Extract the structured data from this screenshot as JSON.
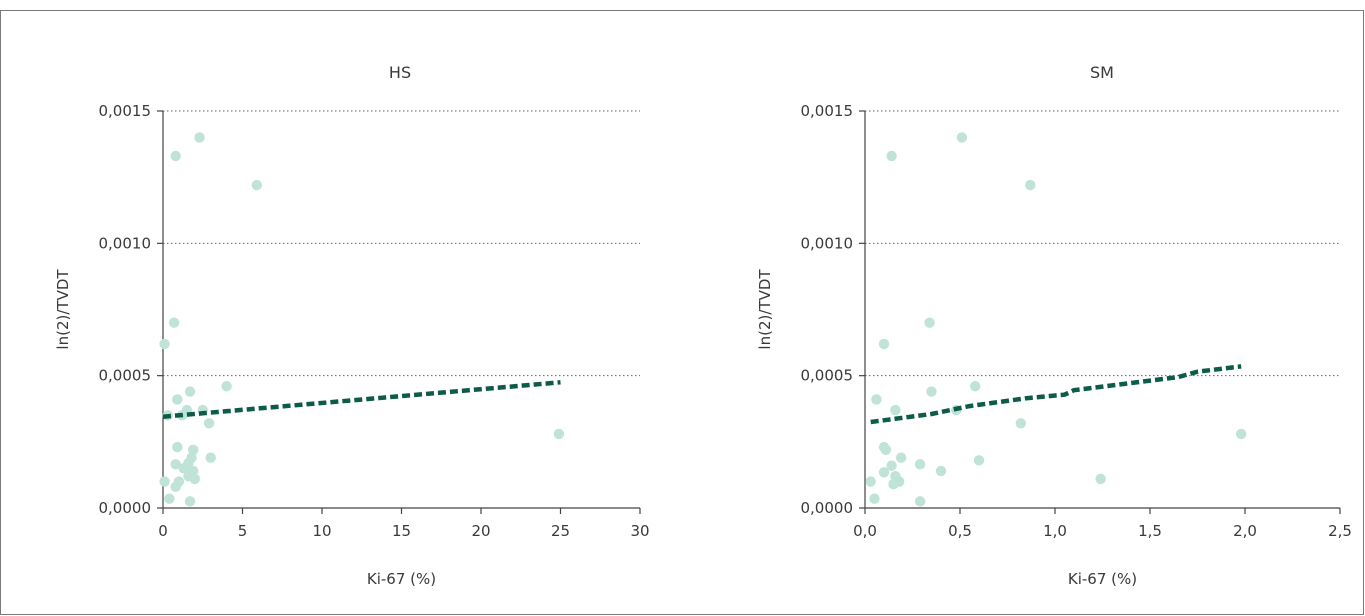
{
  "chart_data": [
    {
      "type": "scatter",
      "title": "HS",
      "xlabel": "Ki-67 (%)",
      "ylabel": "ln(2)/TVDT",
      "xlim": [
        0,
        30
      ],
      "ylim": [
        0,
        0.0015
      ],
      "xticks": [
        "0",
        "5",
        "10",
        "15",
        "20",
        "25",
        "30"
      ],
      "yticks": [
        "0,0000",
        "0,0005",
        "0,0010",
        "0,0015"
      ],
      "grid": "horizontal dotted",
      "point_color": "#bfe3d6",
      "trend_color": "#0d5c49",
      "points": [
        [
          0.1,
          0.0001
        ],
        [
          0.3,
          0.00035
        ],
        [
          0.4,
          3.5e-05
        ],
        [
          0.1,
          0.00062
        ],
        [
          0.7,
          0.0007
        ],
        [
          0.8,
          0.00133
        ],
        [
          0.9,
          0.00041
        ],
        [
          0.9,
          0.00023
        ],
        [
          0.8,
          0.000165
        ],
        [
          1.0,
          0.0001
        ],
        [
          0.8,
          8e-05
        ],
        [
          1.2,
          0.00035
        ],
        [
          1.3,
          0.00015
        ],
        [
          1.5,
          0.00037
        ],
        [
          1.6,
          0.00017
        ],
        [
          1.7,
          0.00044
        ],
        [
          1.6,
          0.00012
        ],
        [
          1.8,
          0.00019
        ],
        [
          1.9,
          0.00022
        ],
        [
          1.9,
          0.00014
        ],
        [
          1.7,
          2.5e-05
        ],
        [
          2.0,
          0.00011
        ],
        [
          2.3,
          0.0014
        ],
        [
          2.5,
          0.00037
        ],
        [
          2.9,
          0.00032
        ],
        [
          3.0,
          0.00019
        ],
        [
          4.0,
          0.00046
        ],
        [
          5.9,
          0.00122
        ],
        [
          24.9,
          0.00028
        ]
      ],
      "trend": [
        [
          0,
          0.000345
        ],
        [
          25,
          0.000475
        ]
      ]
    },
    {
      "type": "scatter",
      "title": "SM",
      "xlabel": "Ki-67 (%)",
      "ylabel": "ln(2)/TVDT",
      "xlim": [
        0,
        2.5
      ],
      "ylim": [
        0,
        0.0015
      ],
      "xticks": [
        "0,0",
        "0,5",
        "1,0",
        "1,5",
        "2,0",
        "2,5"
      ],
      "yticks": [
        "0,0000",
        "0,0005",
        "0,0010",
        "0,0015"
      ],
      "grid": "horizontal dotted",
      "point_color": "#bfe3d6",
      "trend_color": "#0d5c49",
      "points": [
        [
          0.03,
          0.0001
        ],
        [
          0.05,
          3.5e-05
        ],
        [
          0.06,
          0.00041
        ],
        [
          0.1,
          0.00062
        ],
        [
          0.1,
          0.00023
        ],
        [
          0.11,
          0.00022
        ],
        [
          0.1,
          0.000135
        ],
        [
          0.14,
          0.00133
        ],
        [
          0.14,
          0.00016
        ],
        [
          0.15,
          9e-05
        ],
        [
          0.16,
          0.00037
        ],
        [
          0.16,
          0.00012
        ],
        [
          0.18,
          0.0001
        ],
        [
          0.19,
          0.00019
        ],
        [
          0.29,
          0.000165
        ],
        [
          0.29,
          2.5e-05
        ],
        [
          0.34,
          0.0007
        ],
        [
          0.35,
          0.00044
        ],
        [
          0.4,
          0.00014
        ],
        [
          0.48,
          0.00037
        ],
        [
          0.51,
          0.0014
        ],
        [
          0.58,
          0.00046
        ],
        [
          0.6,
          0.00018
        ],
        [
          0.82,
          0.00032
        ],
        [
          0.87,
          0.00122
        ],
        [
          1.24,
          0.00011
        ],
        [
          1.98,
          0.00028
        ]
      ],
      "trend": [
        [
          0.03,
          0.000325
        ],
        [
          0.35,
          0.000355
        ],
        [
          0.55,
          0.000385
        ],
        [
          0.85,
          0.000415
        ],
        [
          1.05,
          0.000428
        ],
        [
          1.1,
          0.000445
        ],
        [
          1.65,
          0.000495
        ],
        [
          1.75,
          0.000515
        ],
        [
          1.98,
          0.000535
        ]
      ]
    }
  ]
}
